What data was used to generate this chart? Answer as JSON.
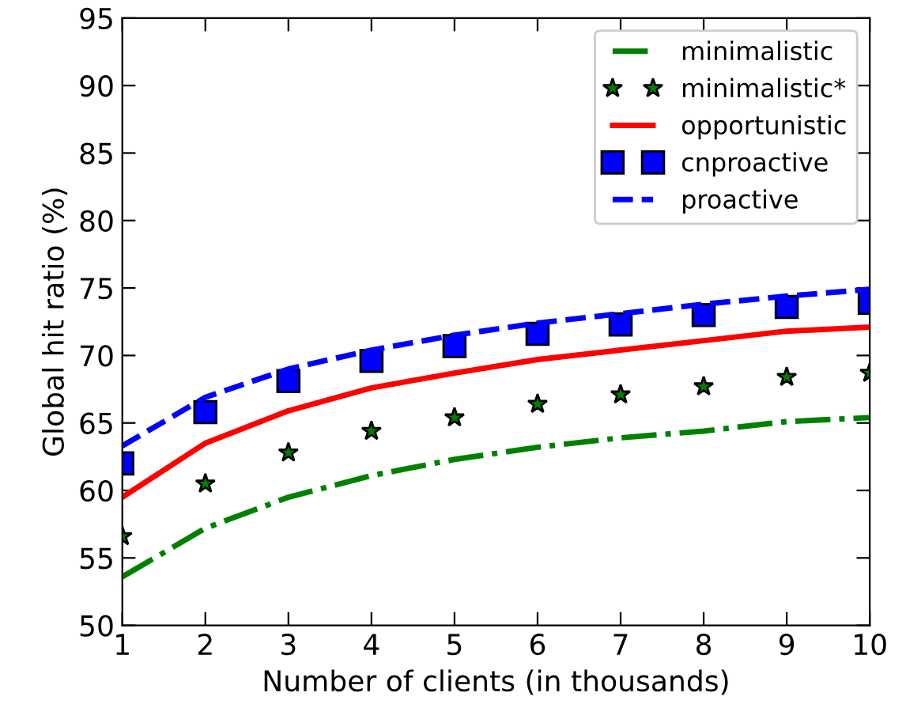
{
  "chart_data": {
    "type": "line",
    "xlabel": "Number of clients (in thousands)",
    "ylabel": "Global hit ratio (%)",
    "x": [
      1,
      2,
      3,
      4,
      5,
      6,
      7,
      8,
      9,
      10
    ],
    "xlim": [
      1,
      10
    ],
    "xticks": [
      1,
      2,
      3,
      4,
      5,
      6,
      7,
      8,
      9,
      10
    ],
    "ylim": [
      50,
      95
    ],
    "yticks": [
      50,
      55,
      60,
      65,
      70,
      75,
      80,
      85,
      90,
      95
    ],
    "grid": false,
    "legend": "top right",
    "series": [
      {
        "name": "minimalistic",
        "color": "#008000",
        "line_style": "dashdot",
        "marker": "none",
        "values": [
          53.6,
          57.2,
          59.5,
          61.1,
          62.3,
          63.2,
          63.9,
          64.4,
          65.1,
          65.4
        ]
      },
      {
        "name": "minimalistic*",
        "type": "scatter",
        "color": "#008000",
        "marker": "star",
        "values": [
          56.6,
          60.5,
          62.8,
          64.4,
          65.4,
          66.4,
          67.1,
          67.7,
          68.4,
          68.7
        ]
      },
      {
        "name": "opportunistic",
        "color": "#ff0000",
        "line_style": "solid",
        "marker": "none",
        "values": [
          59.5,
          63.5,
          65.9,
          67.6,
          68.7,
          69.7,
          70.4,
          71.1,
          71.8,
          72.1
        ]
      },
      {
        "name": "cnproactive",
        "type": "scatter",
        "color": "#0000ff",
        "marker": "square",
        "values": [
          62.0,
          65.8,
          68.1,
          69.6,
          70.7,
          71.6,
          72.3,
          73.0,
          73.6,
          73.9
        ]
      },
      {
        "name": "proactive",
        "color": "#0000ff",
        "line_style": "dashed",
        "marker": "none",
        "values": [
          63.3,
          66.9,
          69.0,
          70.4,
          71.5,
          72.4,
          73.1,
          73.8,
          74.4,
          74.9
        ]
      }
    ]
  }
}
